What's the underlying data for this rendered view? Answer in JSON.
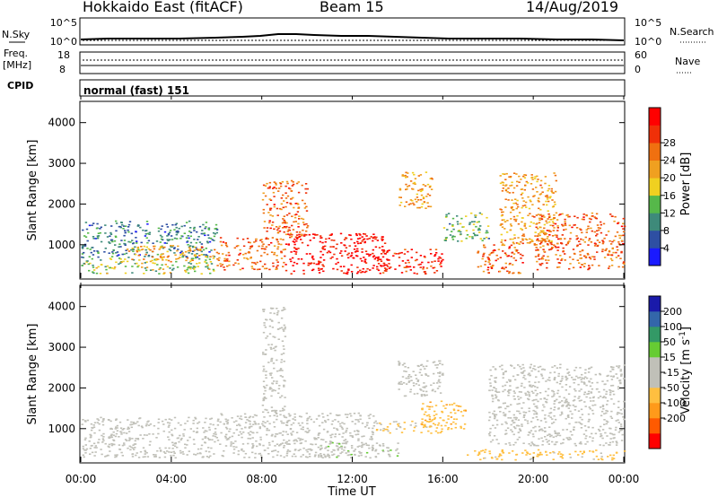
{
  "header": {
    "station": "Hokkaido East (fitACF)",
    "beam": "Beam 15",
    "date": "14/Aug/2019"
  },
  "top_panels": {
    "nsky_label": "N.Sky",
    "nsky_ticks": [
      "10^5",
      "10^0"
    ],
    "nsearch_label": "N.Search",
    "nsearch_ticks": [
      "10^5",
      "10^0"
    ],
    "freq_label": "Freq.",
    "freq_unit": "[MHz]",
    "freq_ticks": [
      "18",
      "8"
    ],
    "nave_label": "Nave",
    "nave_ticks": [
      "60",
      "0"
    ],
    "cpid_label": "CPID",
    "cpid_value": "normal (fast) 151"
  },
  "x_axis": {
    "label": "Time UT",
    "ticks": [
      "00:00",
      "04:00",
      "08:00",
      "12:00",
      "16:00",
      "20:00",
      "00:00"
    ]
  },
  "colors": {
    "power_scale": [
      "#1a1aff",
      "#2e4fa3",
      "#3e8a7a",
      "#56b84a",
      "#f0d020",
      "#f0a020",
      "#f07010",
      "#f03008",
      "#ff0000"
    ],
    "velocity_scale": [
      "#ff0000",
      "#ff5a00",
      "#ff9a1a",
      "#ffbf40",
      "#c0c0b8",
      "#c0c0b8",
      "#66cc33",
      "#339966",
      "#3366aa",
      "#1a1aaa"
    ]
  },
  "chart_data": [
    {
      "type": "heatmap",
      "name": "power",
      "ylabel": "Slant Range [km]",
      "ylim": [
        180,
        4500
      ],
      "yticks": [
        1000,
        2000,
        3000,
        4000
      ],
      "xlim": [
        0,
        24
      ],
      "colorbar": {
        "label": "Power [dB]",
        "range": [
          0,
          32
        ],
        "ticks": [
          "4",
          "8",
          "12",
          "16",
          "20",
          "24",
          "28"
        ]
      },
      "regions": [
        {
          "t": [
            0,
            6
          ],
          "r": [
            700,
            1600
          ],
          "value": 8
        },
        {
          "t": [
            0,
            6
          ],
          "r": [
            300,
            700
          ],
          "value": 14
        },
        {
          "t": [
            2,
            6
          ],
          "r": [
            600,
            1000
          ],
          "value": 20
        },
        {
          "t": [
            6,
            9
          ],
          "r": [
            400,
            1200
          ],
          "value": 24
        },
        {
          "t": [
            9,
            13.5
          ],
          "r": [
            300,
            1300
          ],
          "value": 30
        },
        {
          "t": [
            8,
            10
          ],
          "r": [
            1200,
            2600
          ],
          "value": 24
        },
        {
          "t": [
            13,
            16
          ],
          "r": [
            300,
            900
          ],
          "value": 28
        },
        {
          "t": [
            14,
            15.5
          ],
          "r": [
            1900,
            2800
          ],
          "value": 20
        },
        {
          "t": [
            16,
            18
          ],
          "r": [
            1100,
            1800
          ],
          "value": 12
        },
        {
          "t": [
            17.5,
            19.5
          ],
          "r": [
            300,
            1100
          ],
          "value": 24
        },
        {
          "t": [
            18.5,
            21
          ],
          "r": [
            1000,
            2800
          ],
          "value": 20
        },
        {
          "t": [
            20,
            24
          ],
          "r": [
            400,
            1800
          ],
          "value": 24
        }
      ]
    },
    {
      "type": "heatmap",
      "name": "velocity",
      "ylabel": "Slant Range [km]",
      "ylim": [
        180,
        4500
      ],
      "yticks": [
        1000,
        2000,
        3000,
        4000
      ],
      "xlim": [
        0,
        24
      ],
      "colorbar": {
        "label": "Velocity [m s",
        "label_superscript": "-1",
        "label_end": "]",
        "range": [
          -250,
          250
        ],
        "ticks": [
          "200",
          "100",
          "50",
          "15",
          "-15",
          "-50",
          "-100",
          "-200"
        ]
      },
      "regions": [
        {
          "t": [
            0,
            6
          ],
          "r": [
            300,
            1300
          ],
          "value": 0
        },
        {
          "t": [
            6,
            13
          ],
          "r": [
            300,
            1400
          ],
          "value": 0
        },
        {
          "t": [
            8,
            9
          ],
          "r": [
            1400,
            4000
          ],
          "value": 0
        },
        {
          "t": [
            10.5,
            14
          ],
          "r": [
            300,
            700
          ],
          "value": 30
        },
        {
          "t": [
            13,
            16
          ],
          "r": [
            900,
            1200
          ],
          "value": -60
        },
        {
          "t": [
            15,
            17
          ],
          "r": [
            1000,
            1700
          ],
          "value": -80
        },
        {
          "t": [
            14,
            16
          ],
          "r": [
            1800,
            2700
          ],
          "value": 20
        },
        {
          "t": [
            17,
            24
          ],
          "r": [
            250,
            500
          ],
          "value": -70
        },
        {
          "t": [
            18,
            24
          ],
          "r": [
            600,
            2600
          ],
          "value": 0
        }
      ]
    }
  ]
}
